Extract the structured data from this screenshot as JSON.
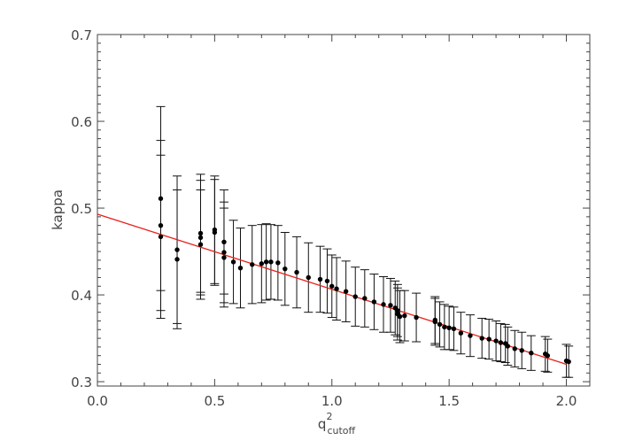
{
  "chart_data": {
    "type": "scatter",
    "title": "",
    "xlabel": {
      "base": "q",
      "superscript": "2",
      "subscript": "cutoff"
    },
    "ylabel": "kappa",
    "xlim": [
      0.0,
      2.1
    ],
    "ylim": [
      0.295,
      0.7
    ],
    "x_ticks": [
      "0.0",
      "0.5",
      "1.0",
      "1.5",
      "2.0"
    ],
    "y_ticks": [
      "0.3",
      "0.4",
      "0.5",
      "0.6",
      "0.7"
    ],
    "x_tick_values": [
      0.0,
      0.5,
      1.0,
      1.5,
      2.0
    ],
    "y_tick_values": [
      0.3,
      0.4,
      0.5,
      0.6,
      0.7
    ],
    "grid": false,
    "legend": "none",
    "colors": {
      "points": "#000000",
      "fit_line": "#e8201a",
      "axes": "#444444"
    },
    "series": [
      {
        "type": "errorbar-scatter",
        "x": [
          0.27,
          0.27,
          0.27,
          0.34,
          0.34,
          0.44,
          0.44,
          0.44,
          0.5,
          0.5,
          0.54,
          0.54,
          0.54,
          0.58,
          0.61,
          0.66,
          0.7,
          0.72,
          0.74,
          0.77,
          0.8,
          0.85,
          0.9,
          0.95,
          0.98,
          1.0,
          1.02,
          1.06,
          1.1,
          1.14,
          1.18,
          1.22,
          1.25,
          1.27,
          1.28,
          1.28,
          1.29,
          1.31,
          1.36,
          1.44,
          1.44,
          1.46,
          1.48,
          1.5,
          1.52,
          1.55,
          1.59,
          1.64,
          1.67,
          1.7,
          1.72,
          1.74,
          1.75,
          1.78,
          1.81,
          1.85,
          1.91,
          1.92,
          2.0,
          2.01
        ],
        "y": [
          0.511,
          0.48,
          0.467,
          0.452,
          0.441,
          0.471,
          0.466,
          0.458,
          0.475,
          0.472,
          0.461,
          0.449,
          0.443,
          0.438,
          0.431,
          0.435,
          0.436,
          0.438,
          0.438,
          0.437,
          0.43,
          0.426,
          0.42,
          0.418,
          0.416,
          0.41,
          0.407,
          0.404,
          0.398,
          0.396,
          0.392,
          0.389,
          0.388,
          0.385,
          0.378,
          0.382,
          0.375,
          0.376,
          0.374,
          0.371,
          0.369,
          0.366,
          0.363,
          0.362,
          0.361,
          0.356,
          0.353,
          0.35,
          0.349,
          0.347,
          0.345,
          0.344,
          0.341,
          0.338,
          0.336,
          0.333,
          0.332,
          0.33,
          0.324,
          0.323
        ],
        "err": [
          0.106,
          0.098,
          0.094,
          0.085,
          0.08,
          0.068,
          0.066,
          0.063,
          0.062,
          0.061,
          0.06,
          0.058,
          0.057,
          0.048,
          0.046,
          0.045,
          0.045,
          0.044,
          0.043,
          0.043,
          0.042,
          0.041,
          0.04,
          0.038,
          0.037,
          0.036,
          0.036,
          0.035,
          0.034,
          0.033,
          0.032,
          0.032,
          0.031,
          0.031,
          0.03,
          0.03,
          0.03,
          0.029,
          0.028,
          0.027,
          0.027,
          0.026,
          0.026,
          0.025,
          0.025,
          0.024,
          0.024,
          0.023,
          0.023,
          0.023,
          0.022,
          0.022,
          0.022,
          0.021,
          0.021,
          0.02,
          0.02,
          0.019,
          0.019,
          0.018
        ]
      },
      {
        "type": "fit-line",
        "x": [
          0.0,
          2.0
        ],
        "y": [
          0.493,
          0.32
        ]
      }
    ]
  }
}
